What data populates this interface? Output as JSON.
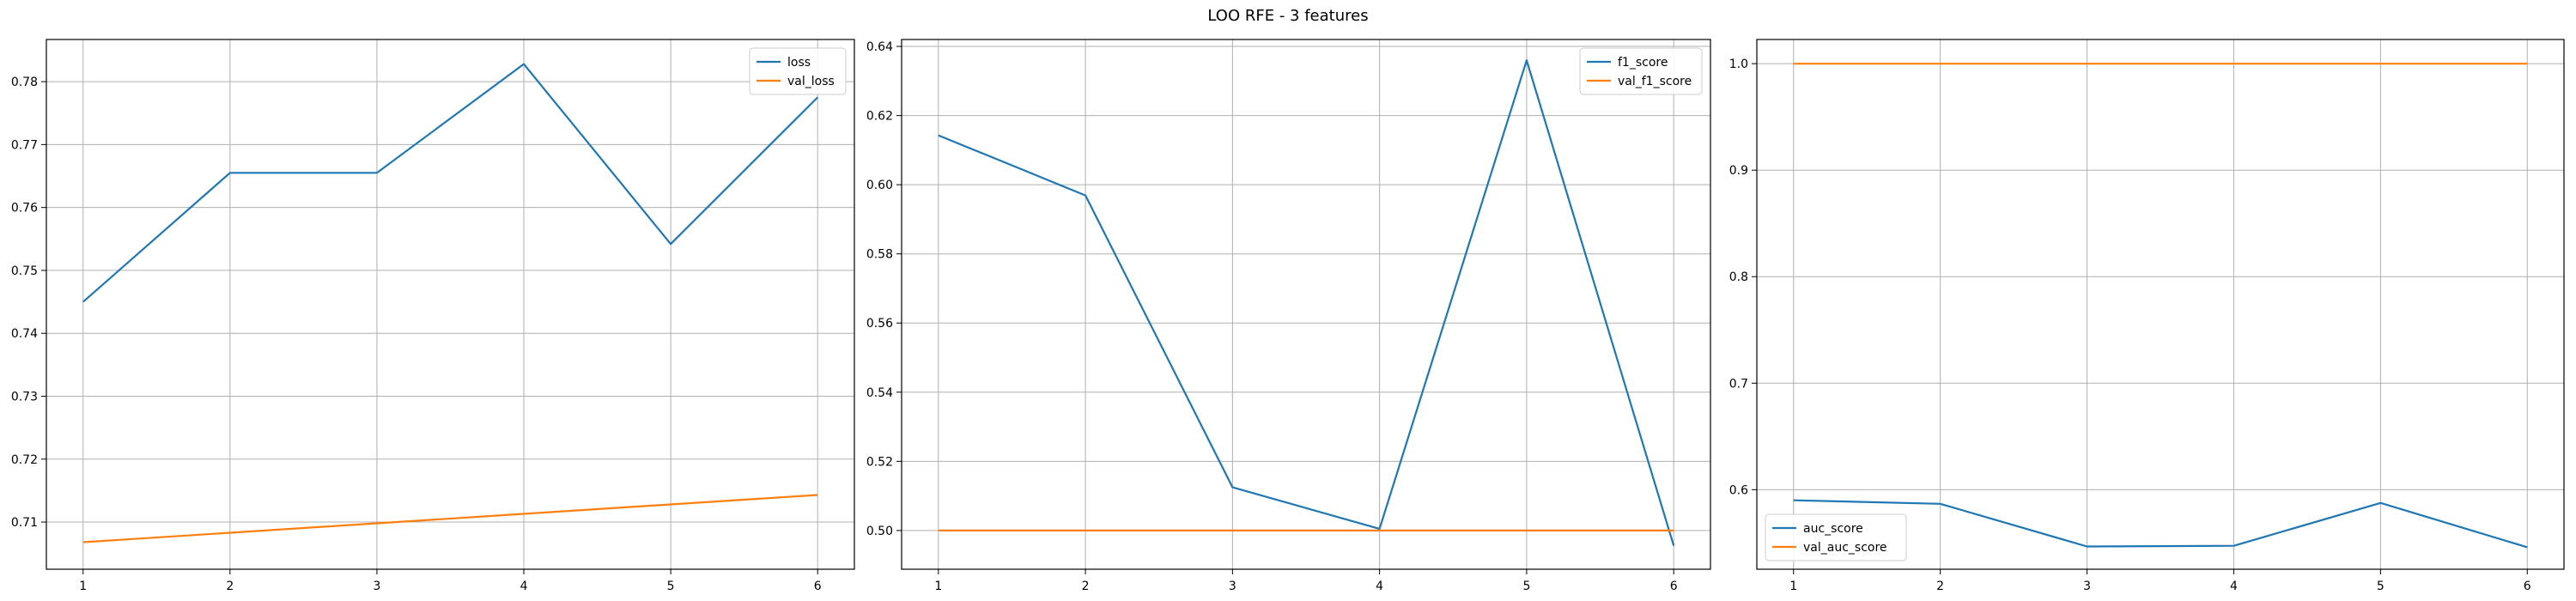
{
  "title": "LOO RFE - 3 features",
  "colors": {
    "series_1": "#1f77b4",
    "series_2": "#ff7f0e",
    "grid": "#b0b0b0",
    "axes": "#000000"
  },
  "chart_data": [
    {
      "type": "line",
      "title": "",
      "xlabel": "",
      "ylabel": "",
      "x": [
        1,
        2,
        3,
        4,
        5,
        6
      ],
      "xlim": [
        0.75,
        6.25
      ],
      "ylim": [
        0.7025,
        0.7867
      ],
      "xticks": [
        1,
        2,
        3,
        4,
        5,
        6
      ],
      "yticks": [
        0.71,
        0.72,
        0.73,
        0.74,
        0.75,
        0.76,
        0.77,
        0.78
      ],
      "grid": true,
      "legend": "upper right",
      "series": [
        {
          "name": "loss",
          "color": "#1f77b4",
          "values": [
            0.745,
            0.7655,
            0.7655,
            0.7828,
            0.7542,
            0.7775
          ]
        },
        {
          "name": "val_loss",
          "color": "#ff7f0e",
          "values": [
            0.7068,
            0.7083,
            0.7098,
            0.7113,
            0.7128,
            0.7143
          ]
        }
      ]
    },
    {
      "type": "line",
      "title": "",
      "xlabel": "",
      "ylabel": "",
      "x": [
        1,
        2,
        3,
        4,
        5,
        6
      ],
      "xlim": [
        0.75,
        6.25
      ],
      "ylim": [
        0.4888,
        0.642
      ],
      "xticks": [
        1,
        2,
        3,
        4,
        5,
        6
      ],
      "yticks": [
        0.5,
        0.52,
        0.54,
        0.56,
        0.58,
        0.6,
        0.62,
        0.64
      ],
      "grid": true,
      "legend": "upper right",
      "series": [
        {
          "name": "f1_score",
          "color": "#1f77b4",
          "values": [
            0.6143,
            0.5969,
            0.5125,
            0.5005,
            0.636,
            0.4956
          ]
        },
        {
          "name": "val_f1_score",
          "color": "#ff7f0e",
          "values": [
            0.5,
            0.5,
            0.5,
            0.5,
            0.5,
            0.5
          ]
        }
      ]
    },
    {
      "type": "line",
      "title": "",
      "xlabel": "",
      "ylabel": "",
      "x": [
        1,
        2,
        3,
        4,
        5,
        6
      ],
      "xlim": [
        0.75,
        6.25
      ],
      "ylim": [
        0.5253,
        1.0227
      ],
      "xticks": [
        1,
        2,
        3,
        4,
        5,
        6
      ],
      "yticks": [
        0.6,
        0.7,
        0.8,
        0.9,
        1.0
      ],
      "grid": true,
      "legend": "lower left",
      "series": [
        {
          "name": "auc_score",
          "color": "#1f77b4",
          "values": [
            0.59,
            0.5867,
            0.5467,
            0.5473,
            0.5875,
            0.5459
          ]
        },
        {
          "name": "val_auc_score",
          "color": "#ff7f0e",
          "values": [
            1.0,
            1.0,
            1.0,
            1.0,
            1.0,
            1.0
          ]
        }
      ]
    }
  ]
}
